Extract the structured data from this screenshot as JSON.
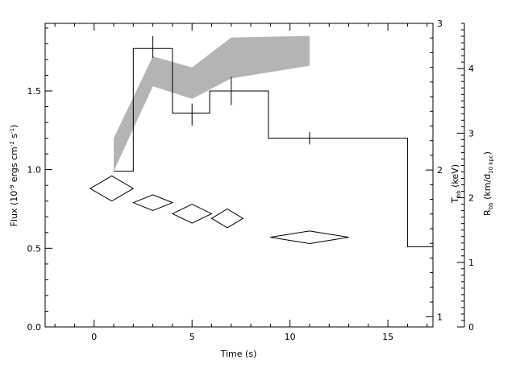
{
  "chart_data": {
    "type": "line",
    "xlabel": "Time (s)",
    "ylabel": "Flux (10-9 ergs cm-2 s-1)",
    "ylabel_parts": {
      "main": "Flux (10",
      "exp1": "-9",
      "mid": " ergs cm",
      "exp2": "-2",
      "mid2": " s",
      "exp3": "-1",
      "end": ")"
    },
    "kT_label": {
      "main": "T",
      "sub": "bb",
      "end": " (keV)"
    },
    "R_label": {
      "main": "R",
      "sub": "bb",
      "mid": " (km/d",
      "sub2": "10 kpc",
      "end": ")"
    },
    "xlim": [
      -2.5,
      17.3
    ],
    "ylim": [
      0,
      1.93
    ],
    "x_ticks": [
      "0",
      "5",
      "10",
      "15"
    ],
    "y_ticks": [
      "0.0",
      "0.5",
      "1.0",
      "1.5"
    ],
    "kT_axis": {
      "range": [
        0.93,
        3.0
      ],
      "ticks": [
        "1",
        "2",
        "3"
      ]
    },
    "R_axis": {
      "range": [
        0,
        4.7
      ],
      "ticks": [
        "0",
        "1",
        "2",
        "3",
        "4"
      ]
    },
    "flux_histogram": {
      "name": "Flux",
      "steps": [
        {
          "x0": 1.0,
          "x1": 2.0,
          "y": 0.99
        },
        {
          "x0": 2.0,
          "x1": 4.0,
          "y": 1.77
        },
        {
          "x0": 4.0,
          "x1": 5.9,
          "y": 1.36
        },
        {
          "x0": 5.9,
          "x1": 8.9,
          "y": 1.5
        },
        {
          "x0": 8.9,
          "x1": 16.0,
          "y": 1.2
        },
        {
          "x0": 16.0,
          "x1": 17.3,
          "y": 0.51
        }
      ]
    },
    "flux_errorbars": [
      {
        "x": 3.0,
        "y": 1.77,
        "lo": 1.71,
        "hi": 1.85
      },
      {
        "x": 5.0,
        "y": 1.36,
        "lo": 1.28,
        "hi": 1.42
      },
      {
        "x": 7.0,
        "y": 1.5,
        "lo": 1.41,
        "hi": 1.59
      },
      {
        "x": 11.0,
        "y": 1.2,
        "lo": 1.16,
        "hi": 1.24
      }
    ],
    "band": {
      "name": "kT range",
      "x": [
        1.0,
        3.0,
        5.0,
        7.0,
        11.0
      ],
      "lower": [
        0.99,
        1.53,
        1.45,
        1.58,
        1.66
      ],
      "upper": [
        1.2,
        1.72,
        1.65,
        1.84,
        1.85
      ]
    },
    "R_diamonds": [
      {
        "x": 0.9,
        "y": 0.88,
        "hw": 1.1,
        "hh": 0.08
      },
      {
        "x": 3.0,
        "y": 0.79,
        "hw": 1.0,
        "hh": 0.05
      },
      {
        "x": 5.0,
        "y": 0.72,
        "hw": 1.0,
        "hh": 0.06
      },
      {
        "x": 6.8,
        "y": 0.69,
        "hw": 0.8,
        "hh": 0.06
      },
      {
        "x": 11.0,
        "y": 0.57,
        "hw": 2.0,
        "hh": 0.04
      }
    ],
    "colors": {
      "band": "#b4b4b4",
      "line": "#000000",
      "background": "#ffffff"
    }
  }
}
